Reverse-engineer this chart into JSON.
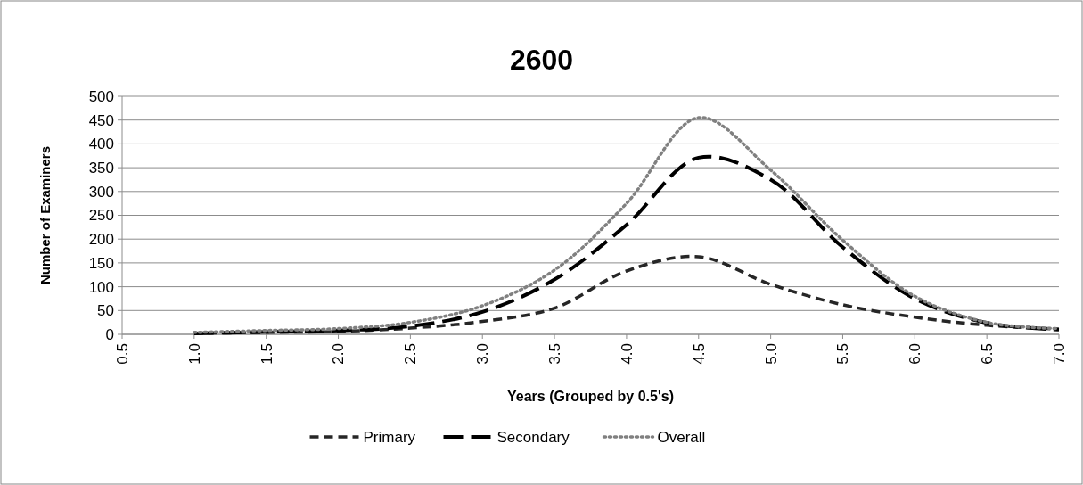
{
  "chart_data": {
    "type": "line",
    "title": "2600",
    "xlabel": "Years (Grouped by 0.5's)",
    "ylabel": "Number of Examiners",
    "x": [
      1.0,
      1.5,
      2.0,
      2.5,
      3.0,
      3.5,
      4.0,
      4.5,
      5.0,
      5.5,
      6.0,
      6.5,
      7.0
    ],
    "series": [
      {
        "name": "Primary",
        "color": "#262626",
        "line_style": "dashed",
        "values": [
          2,
          4,
          6,
          13,
          27,
          55,
          133,
          163,
          105,
          62,
          36,
          19,
          11
        ]
      },
      {
        "name": "Secondary",
        "color": "#000000",
        "line_style": "dashed",
        "values": [
          2,
          5,
          8,
          17,
          47,
          115,
          230,
          371,
          325,
          183,
          75,
          24,
          10
        ]
      },
      {
        "name": "Overall",
        "color": "#808080",
        "line_style": "dotted",
        "values": [
          4,
          8,
          12,
          25,
          60,
          135,
          275,
          455,
          345,
          198,
          80,
          25,
          12
        ]
      }
    ],
    "xlim": [
      0.5,
      7.0
    ],
    "xticks": [
      {
        "value": 0.5,
        "label": "0.5"
      },
      {
        "value": 1,
        "label": "1.0"
      },
      {
        "value": 1.5,
        "label": "1.5"
      },
      {
        "value": 2,
        "label": "2.0"
      },
      {
        "value": 2.5,
        "label": "2.5"
      },
      {
        "value": 3,
        "label": "3.0"
      },
      {
        "value": 3.5,
        "label": "3.5"
      },
      {
        "value": 4,
        "label": "4.0"
      },
      {
        "value": 4.5,
        "label": "4.5"
      },
      {
        "value": 5,
        "label": "5.0"
      },
      {
        "value": 5.5,
        "label": "5.5"
      },
      {
        "value": 6,
        "label": "6.0"
      },
      {
        "value": 6.5,
        "label": "6.5"
      },
      {
        "value": 7,
        "label": "7.0"
      }
    ],
    "ylim": [
      0,
      500
    ],
    "yticks": [
      0,
      50,
      100,
      150,
      200,
      250,
      300,
      350,
      400,
      450,
      500
    ],
    "grid": "y",
    "legend": "bottom",
    "marker": "none"
  }
}
